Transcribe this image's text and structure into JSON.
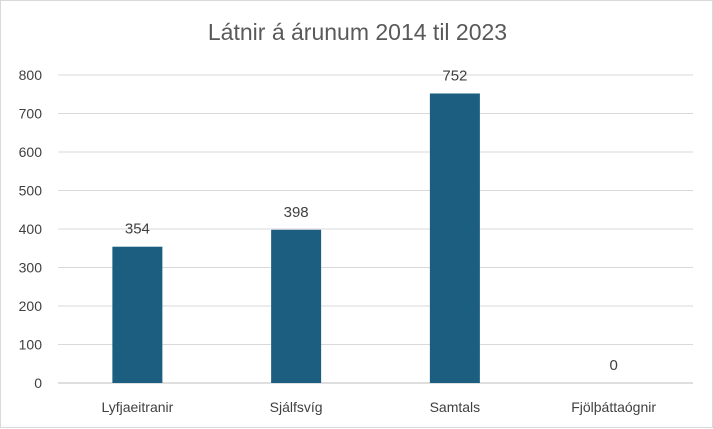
{
  "chart_data": {
    "type": "bar",
    "title": "Látnir á árunum 2014 til 2023",
    "categories": [
      "Lyfjaeitranir",
      "Sjálfsvíg",
      "Samtals",
      "Fjölþáttaógnir"
    ],
    "values": [
      354,
      398,
      752,
      0
    ],
    "data_labels": [
      "354",
      "398",
      "752",
      "0"
    ],
    "xlabel": "",
    "ylabel": "",
    "ylim": [
      0,
      800
    ],
    "yticks": [
      0,
      100,
      200,
      300,
      400,
      500,
      600,
      700,
      800
    ],
    "grid": true,
    "legend": "none",
    "bar_color": "#1b5e7f"
  }
}
